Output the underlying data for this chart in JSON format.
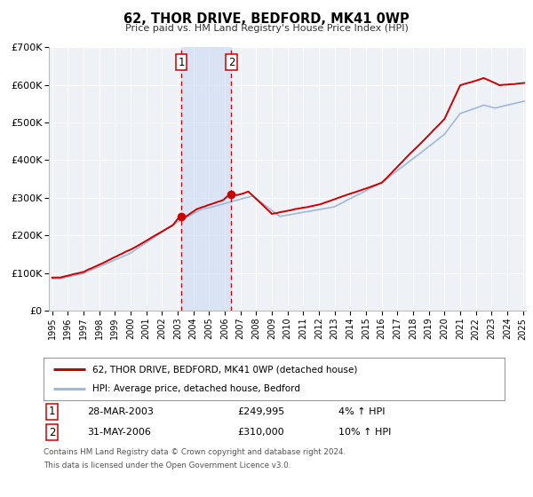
{
  "title": "62, THOR DRIVE, BEDFORD, MK41 0WP",
  "subtitle": "Price paid vs. HM Land Registry's House Price Index (HPI)",
  "legend_line1": "62, THOR DRIVE, BEDFORD, MK41 0WP (detached house)",
  "legend_line2": "HPI: Average price, detached house, Bedford",
  "transaction1_date": "28-MAR-2003",
  "transaction1_price": "£249,995",
  "transaction1_hpi": "4% ↑ HPI",
  "transaction2_date": "31-MAY-2006",
  "transaction2_price": "£310,000",
  "transaction2_hpi": "10% ↑ HPI",
  "footer1": "Contains HM Land Registry data © Crown copyright and database right 2024.",
  "footer2": "This data is licensed under the Open Government Licence v3.0.",
  "price_color": "#cc0000",
  "hpi_color": "#a0b8d8",
  "background_color": "#ffffff",
  "ylim": [
    0,
    700000
  ],
  "yticks": [
    0,
    100000,
    200000,
    300000,
    400000,
    500000,
    600000,
    700000
  ],
  "ytick_labels": [
    "£0",
    "£100K",
    "£200K",
    "£300K",
    "£400K",
    "£500K",
    "£600K",
    "£700K"
  ],
  "transaction1_x": 2003.23,
  "transaction2_x": 2006.42,
  "transaction1_y": 249995,
  "transaction2_y": 310000,
  "shade_x1": 2003.23,
  "shade_x2": 2006.42,
  "xlim_left": 1994.8,
  "xlim_right": 2025.2
}
